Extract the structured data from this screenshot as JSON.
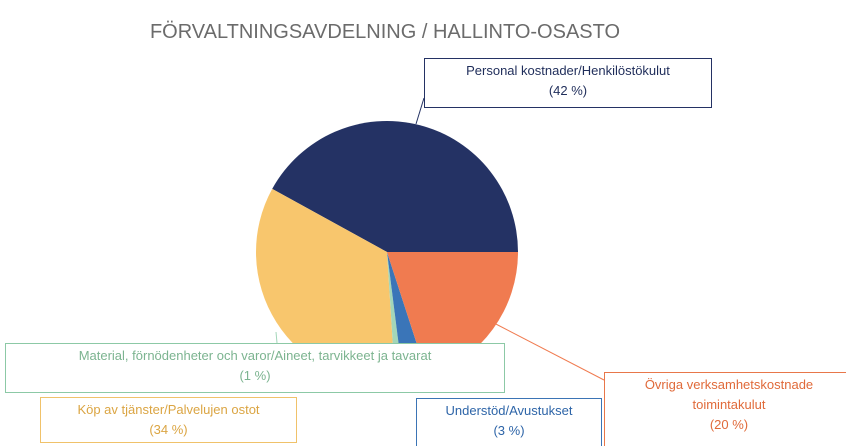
{
  "chart_data": {
    "type": "pie",
    "title": "FÖRVALTNINGSAVDELNING / HALLINTO-OSASTO",
    "categories": [
      "Personal kostnader/Henkilöstökulut",
      "Köp av tjänster/Palvelujen ostot",
      "Material, förnödenheter och varor/Aineet, tarvikkeet ja tavarat",
      "Understöd/Avustukset",
      "Övriga verksamhetskostnade\ntoimintakulut"
    ],
    "values": [
      42,
      34,
      1,
      3,
      20
    ],
    "value_labels": [
      "(42 %)",
      "(34 %)",
      "(1 %)",
      "(3 %)",
      "(20 %)"
    ],
    "colors": [
      "#243264",
      "#f8c66d",
      "#a3d6b9",
      "#3a75b8",
      "#f07b50"
    ]
  }
}
